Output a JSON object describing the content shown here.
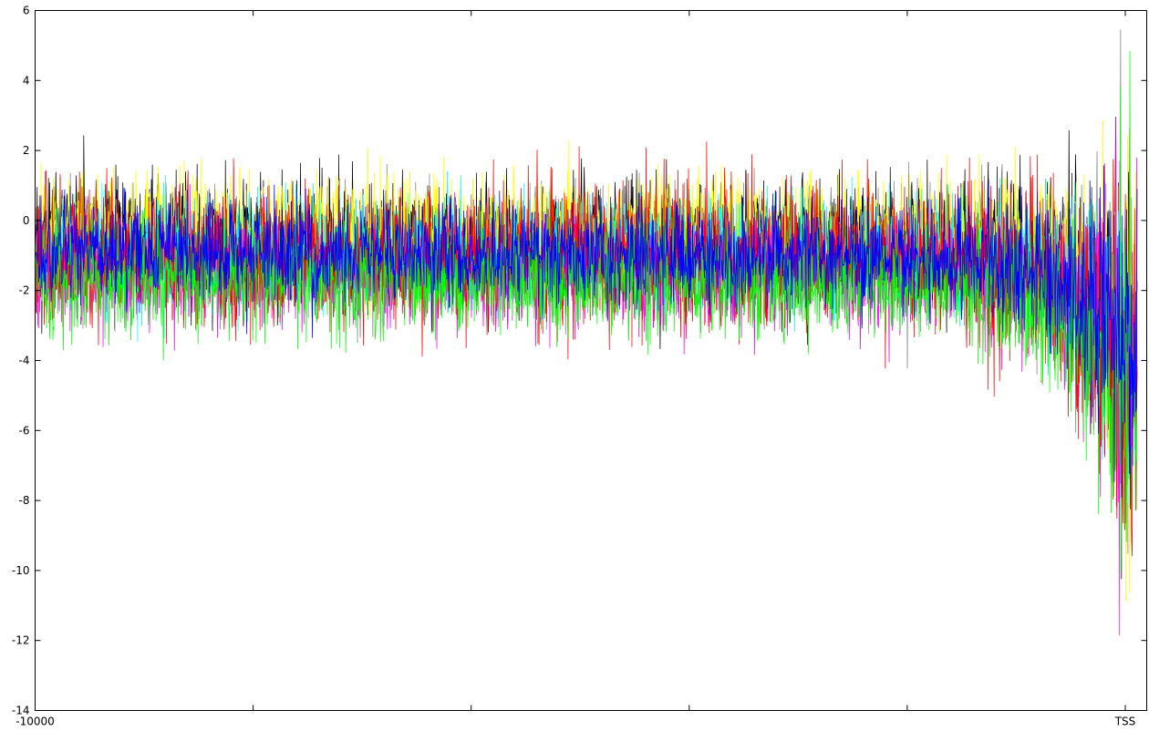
{
  "chart_data": {
    "type": "line",
    "ylim": [
      -14,
      6
    ],
    "xlim": [
      -10000,
      0
    ],
    "y_ticks": [
      -14,
      -12,
      -10,
      -8,
      -6,
      -4,
      -2,
      0,
      2,
      4,
      6
    ],
    "y_tick_labels": [
      "-14",
      "-12",
      "-10",
      "-8",
      "-6",
      "-4",
      "-2",
      "0",
      "2",
      "4",
      "6"
    ],
    "x_ticks": [
      -10000,
      -8000,
      -6000,
      -4000,
      -2000,
      0
    ],
    "x_tick_labels": [
      "-10000",
      "",
      "",
      "",
      "",
      "TSS"
    ],
    "grid": false,
    "legend": "none",
    "series_draw_order": [
      "gray",
      "black",
      "yellow",
      "cyan",
      "magenta",
      "red",
      "green",
      "blue"
    ],
    "series": [
      {
        "color": "#808080",
        "center": [
          [
            -10000,
            -0.9
          ],
          [
            -1600,
            -1.0
          ],
          [
            -700,
            -1.4
          ],
          [
            -300,
            -2.2
          ],
          [
            0,
            -3.2
          ]
        ],
        "spread": [
          [
            -10000,
            0.9
          ],
          [
            -1600,
            0.9
          ],
          [
            -600,
            1.2
          ],
          [
            0,
            2.2
          ]
        ]
      },
      {
        "color": "#000000",
        "center": [
          [
            -10000,
            -0.6
          ],
          [
            -1600,
            -0.7
          ],
          [
            -700,
            -1.1
          ],
          [
            -300,
            -1.9
          ],
          [
            0,
            -3.0
          ]
        ],
        "spread": [
          [
            -10000,
            0.9
          ],
          [
            -1600,
            0.9
          ],
          [
            -600,
            1.2
          ],
          [
            0,
            2.2
          ]
        ]
      },
      {
        "color": "#ffff00",
        "center": [
          [
            -10000,
            -0.3
          ],
          [
            -1600,
            -0.4
          ],
          [
            -700,
            -0.9
          ],
          [
            -300,
            -1.8
          ],
          [
            0,
            -3.1
          ]
        ],
        "spread": [
          [
            -10000,
            0.8
          ],
          [
            -1600,
            0.8
          ],
          [
            -600,
            1.1
          ],
          [
            0,
            2.0
          ]
        ]
      },
      {
        "color": "#00ffff",
        "center": [
          [
            -10000,
            -0.9
          ],
          [
            -1600,
            -0.9
          ],
          [
            -700,
            -1.4
          ],
          [
            -300,
            -2.3
          ],
          [
            0,
            -3.4
          ]
        ],
        "spread": [
          [
            -10000,
            0.8
          ],
          [
            -1600,
            0.8
          ],
          [
            -600,
            1.1
          ],
          [
            0,
            2.0
          ]
        ]
      },
      {
        "color": "#ff00ff",
        "center": [
          [
            -10000,
            -1.4
          ],
          [
            -1600,
            -1.5
          ],
          [
            -700,
            -1.9
          ],
          [
            -300,
            -2.7
          ],
          [
            0,
            -3.8
          ]
        ],
        "spread": [
          [
            -10000,
            0.8
          ],
          [
            -1600,
            0.8
          ],
          [
            -600,
            1.1
          ],
          [
            0,
            2.2
          ]
        ]
      },
      {
        "color": "#ff0000",
        "center": [
          [
            -10000,
            -1.0
          ],
          [
            -1600,
            -1.1
          ],
          [
            -700,
            -1.8
          ],
          [
            -300,
            -3.0
          ],
          [
            0,
            -4.2
          ]
        ],
        "spread": [
          [
            -10000,
            1.0
          ],
          [
            -1600,
            1.0
          ],
          [
            -600,
            1.4
          ],
          [
            0,
            2.5
          ]
        ]
      },
      {
        "color": "#00ff00",
        "center": [
          [
            -10000,
            -1.6
          ],
          [
            -1600,
            -1.7
          ],
          [
            -700,
            -2.4
          ],
          [
            -300,
            -3.6
          ],
          [
            0,
            -4.6
          ]
        ],
        "spread": [
          [
            -10000,
            0.8
          ],
          [
            -1600,
            0.8
          ],
          [
            -600,
            1.2
          ],
          [
            0,
            2.2
          ]
        ]
      },
      {
        "color": "#0000ff",
        "center": [
          [
            -10000,
            -0.9
          ],
          [
            -1600,
            -1.0
          ],
          [
            -700,
            -1.6
          ],
          [
            -300,
            -2.6
          ],
          [
            0,
            -3.6
          ]
        ],
        "spread": [
          [
            -10000,
            0.7
          ],
          [
            -1600,
            0.7
          ],
          [
            -600,
            1.1
          ],
          [
            0,
            2.0
          ]
        ]
      }
    ]
  }
}
